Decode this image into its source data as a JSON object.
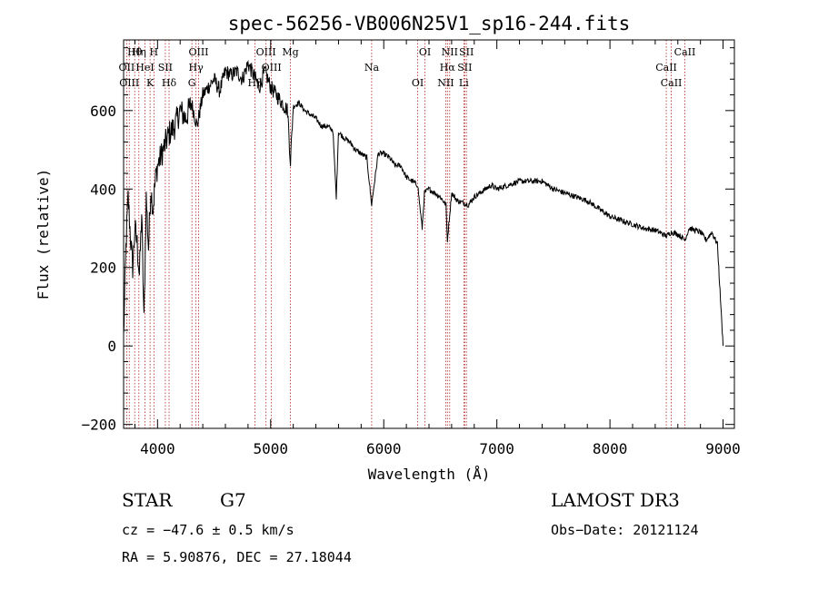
{
  "chart_data": {
    "type": "line",
    "title": "spec-56256-VB006N25V1_sp16-244.fits",
    "xlabel": "Wavelength (Å)",
    "ylabel": "Flux (relative)",
    "xlim": [
      3700,
      9100
    ],
    "ylim": [
      -210,
      780
    ],
    "xticks": [
      4000,
      5000,
      6000,
      7000,
      8000,
      9000
    ],
    "yticks": [
      -200,
      0,
      200,
      400,
      600
    ],
    "grid": false,
    "line_color": "#000000",
    "marker_color": "#b22222",
    "series": [
      {
        "x": [
          3700,
          3720,
          3740,
          3760,
          3780,
          3800,
          3820,
          3840,
          3860,
          3880,
          3900,
          3920,
          3940,
          3960,
          3980,
          4000,
          4050,
          4100,
          4150,
          4200,
          4250,
          4300,
          4350,
          4400,
          4450,
          4500,
          4550,
          4600,
          4650,
          4700,
          4750,
          4800,
          4850,
          4900,
          4950,
          5000,
          5050,
          5100,
          5150,
          5175,
          5200,
          5250,
          5300,
          5350,
          5400,
          5450,
          5500,
          5550,
          5580,
          5600,
          5650,
          5700,
          5750,
          5800,
          5850,
          5893,
          5950,
          6000,
          6050,
          6100,
          6150,
          6200,
          6250,
          6300,
          6340,
          6360,
          6400,
          6450,
          6500,
          6550,
          6563,
          6600,
          6650,
          6700,
          6750,
          6800,
          6850,
          6900,
          6950,
          7000,
          7100,
          7200,
          7300,
          7400,
          7500,
          7600,
          7700,
          7800,
          7900,
          8000,
          8100,
          8200,
          8300,
          8400,
          8500,
          8542,
          8600,
          8662,
          8700,
          8800,
          8850,
          8900,
          8950,
          9000
        ],
        "y": [
          20,
          250,
          380,
          280,
          200,
          300,
          260,
          180,
          340,
          60,
          380,
          250,
          400,
          350,
          420,
          460,
          500,
          540,
          560,
          600,
          580,
          620,
          560,
          640,
          660,
          680,
          650,
          700,
          690,
          700,
          680,
          720,
          690,
          660,
          700,
          660,
          640,
          620,
          600,
          470,
          610,
          620,
          600,
          590,
          580,
          560,
          560,
          550,
          380,
          545,
          530,
          520,
          500,
          490,
          480,
          360,
          490,
          490,
          480,
          460,
          460,
          430,
          420,
          410,
          300,
          390,
          400,
          390,
          380,
          360,
          270,
          390,
          370,
          365,
          360,
          380,
          390,
          400,
          410,
          400,
          410,
          420,
          420,
          420,
          400,
          390,
          380,
          370,
          350,
          330,
          320,
          310,
          300,
          295,
          280,
          290,
          285,
          270,
          300,
          290,
          270,
          290,
          260,
          0
        ]
      }
    ],
    "spectral_lines": [
      {
        "label": "Hθ",
        "wavelength": 3798
      },
      {
        "label": "OII",
        "wavelength": 3727
      },
      {
        "label": "OIII",
        "wavelength": 3750
      },
      {
        "label": "Hη",
        "wavelength": 3835
      },
      {
        "label": "HeI",
        "wavelength": 3889
      },
      {
        "label": "K",
        "wavelength": 3934
      },
      {
        "label": "H",
        "wavelength": 3968
      },
      {
        "label": "SII",
        "wavelength": 4069
      },
      {
        "label": "Hδ",
        "wavelength": 4102
      },
      {
        "label": "OIII",
        "wavelength": 4363
      },
      {
        "label": "Hγ",
        "wavelength": 4340
      },
      {
        "label": "G",
        "wavelength": 4304
      },
      {
        "label": "OIII",
        "wavelength": 4959
      },
      {
        "label": "OIII",
        "wavelength": 5007
      },
      {
        "label": "Hβ",
        "wavelength": 4861
      },
      {
        "label": "Mg",
        "wavelength": 5175
      },
      {
        "label": "Na",
        "wavelength": 5893
      },
      {
        "label": "OI",
        "wavelength": 6300
      },
      {
        "label": "OI",
        "wavelength": 6364
      },
      {
        "label": "Hα",
        "wavelength": 6563
      },
      {
        "label": "NII",
        "wavelength": 6548
      },
      {
        "label": "NII",
        "wavelength": 6583
      },
      {
        "label": "SII",
        "wavelength": 6716
      },
      {
        "label": "Li",
        "wavelength": 6708
      },
      {
        "label": "SII",
        "wavelength": 6731
      },
      {
        "label": "CaII",
        "wavelength": 8498
      },
      {
        "label": "CaII",
        "wavelength": 8542
      },
      {
        "label": "CaII",
        "wavelength": 8662
      }
    ]
  },
  "info": {
    "object_class": "STAR",
    "subclass": "G7",
    "survey": "LAMOST DR3",
    "cz_line": "cz = −47.6 ± 0.5 km/s",
    "obs_date_line": "Obs−Date: 20121124",
    "coords_line": "RA =   5.90876, DEC =  27.18044"
  }
}
